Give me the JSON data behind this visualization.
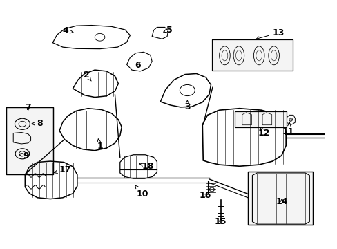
{
  "bg_color": "#ffffff",
  "line_color": "#000000",
  "font_size": 9,
  "labels": [
    {
      "num": "1",
      "xl": 0.295,
      "yl": 0.412,
      "xa": 0.29,
      "ya": 0.445
    },
    {
      "num": "2",
      "xl": 0.255,
      "yl": 0.7,
      "xa": 0.27,
      "ya": 0.675
    },
    {
      "num": "3",
      "xl": 0.555,
      "yl": 0.572,
      "xa": 0.555,
      "ya": 0.6
    },
    {
      "num": "4",
      "xl": 0.193,
      "yl": 0.877,
      "xa": 0.218,
      "ya": 0.872
    },
    {
      "num": "5",
      "xl": 0.502,
      "yl": 0.882,
      "xa": 0.482,
      "ya": 0.872
    },
    {
      "num": "6",
      "xl": 0.408,
      "yl": 0.738,
      "xa": 0.418,
      "ya": 0.755
    },
    {
      "num": "7",
      "xl": 0.082,
      "yl": 0.567,
      "xa": 0.082,
      "ya": 0.548
    },
    {
      "num": "8",
      "xl": 0.117,
      "yl": 0.504,
      "xa": 0.085,
      "ya": 0.502
    },
    {
      "num": "9",
      "xl": 0.076,
      "yl": 0.374,
      "xa": 0.053,
      "ya": 0.382
    },
    {
      "num": "10",
      "xl": 0.422,
      "yl": 0.22,
      "xa": 0.398,
      "ya": 0.257
    },
    {
      "num": "11",
      "xl": 0.855,
      "yl": 0.472,
      "xa": 0.86,
      "ya": 0.517
    },
    {
      "num": "12",
      "xl": 0.782,
      "yl": 0.464,
      "xa": 0.772,
      "ya": 0.492
    },
    {
      "num": "13",
      "xl": 0.826,
      "yl": 0.87,
      "xa": 0.752,
      "ya": 0.842
    },
    {
      "num": "14",
      "xl": 0.836,
      "yl": 0.19,
      "xa": 0.836,
      "ya": 0.212
    },
    {
      "num": "15",
      "xl": 0.654,
      "yl": 0.108,
      "xa": 0.654,
      "ya": 0.132
    },
    {
      "num": "16",
      "xl": 0.608,
      "yl": 0.215,
      "xa": 0.62,
      "ya": 0.228
    },
    {
      "num": "17",
      "xl": 0.192,
      "yl": 0.318,
      "xa": 0.152,
      "ya": 0.303
    },
    {
      "num": "18",
      "xl": 0.438,
      "yl": 0.332,
      "xa": 0.412,
      "ya": 0.342
    }
  ]
}
